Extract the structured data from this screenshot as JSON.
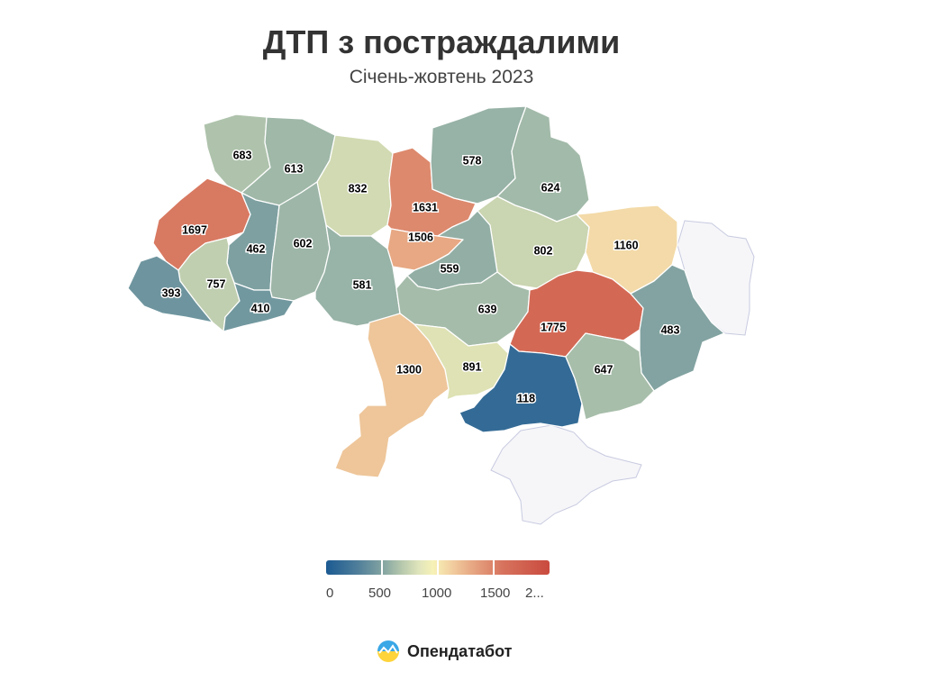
{
  "header": {
    "title": "ДТП з постраждалими",
    "subtitle": "Січень-жовтень 2023"
  },
  "chart_data": {
    "type": "choropleth",
    "value_range": [
      0,
      2000
    ],
    "regions": [
      {
        "id": "volyn",
        "value": 683
      },
      {
        "id": "rivne",
        "value": 613
      },
      {
        "id": "zhytomyr",
        "value": 832
      },
      {
        "id": "kyiv-oblast",
        "value": 1631
      },
      {
        "id": "kyiv-south",
        "value": 1506
      },
      {
        "id": "chernihiv",
        "value": 578
      },
      {
        "id": "sumy",
        "value": 624
      },
      {
        "id": "lviv",
        "value": 1697
      },
      {
        "id": "ternopil",
        "value": 462
      },
      {
        "id": "khmelnytskyi",
        "value": 602
      },
      {
        "id": "poltava",
        "value": 802
      },
      {
        "id": "kharkiv",
        "value": 1160
      },
      {
        "id": "cherkasy",
        "value": 559
      },
      {
        "id": "vinnytsia",
        "value": 581
      },
      {
        "id": "ivano-frankivsk",
        "value": 757
      },
      {
        "id": "zakarpattia",
        "value": 393
      },
      {
        "id": "chernivtsi",
        "value": 410
      },
      {
        "id": "kirovohrad",
        "value": 639
      },
      {
        "id": "dnipropetrovsk",
        "value": 1775
      },
      {
        "id": "luhansk",
        "value": 483
      },
      {
        "id": "odesa",
        "value": 1300
      },
      {
        "id": "mykolaiv",
        "value": 891
      },
      {
        "id": "kherson",
        "value": 118
      },
      {
        "id": "zaporizhzhia",
        "value": 647
      }
    ]
  },
  "legend": {
    "ticks": [
      "0",
      "500",
      "1000",
      "1500",
      "2..."
    ]
  },
  "colors": {
    "scale": [
      "#1b5a92",
      "#86a6a2",
      "#f7f2b7",
      "#e7a984",
      "#c94a3e"
    ],
    "occupied": "#f6f6f9"
  },
  "brand": {
    "name": "Опендатабот"
  }
}
